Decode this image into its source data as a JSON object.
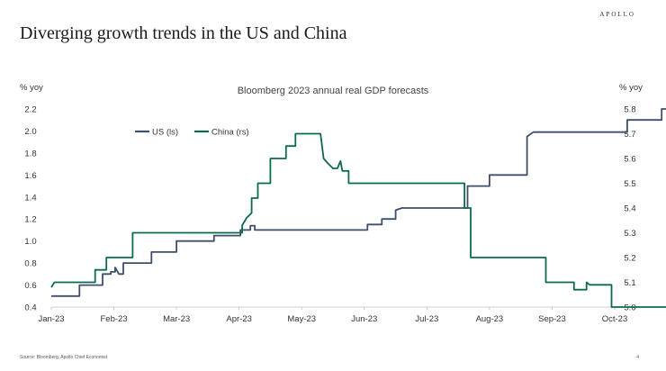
{
  "header": {
    "brand": "APOLLO",
    "title": "Diverging growth trends in the US and China"
  },
  "footer": {
    "source": "Source: Bloomberg, Apollo Chief Economist",
    "page": "4"
  },
  "chart_data": {
    "type": "line",
    "title": "Bloomberg 2023 annual real GDP forecasts",
    "ylabel_left": "% yoy",
    "ylabel_right": "% yoy",
    "x_ticks": [
      "Jan-23",
      "Feb-23",
      "Mar-23",
      "Apr-23",
      "May-23",
      "Jun-23",
      "Jul-23",
      "Aug-23",
      "Sep-23",
      "Oct-23"
    ],
    "ylim_left": [
      0.4,
      2.2
    ],
    "y_ticks_left": [
      "0.4",
      "0.6",
      "0.8",
      "1.0",
      "1.2",
      "1.4",
      "1.6",
      "1.8",
      "2.0",
      "2.2"
    ],
    "ylim_right": [
      5.0,
      5.8
    ],
    "y_ticks_right": [
      "5.0",
      "5.1",
      "5.2",
      "5.3",
      "5.4",
      "5.5",
      "5.6",
      "5.7",
      "5.8"
    ],
    "series": [
      {
        "name": "US (ls)",
        "axis": "left",
        "color": "#3d4f6b",
        "points": [
          [
            0,
            0.5
          ],
          [
            0.45,
            0.5
          ],
          [
            0.45,
            0.6
          ],
          [
            0.82,
            0.6
          ],
          [
            0.82,
            0.7
          ],
          [
            0.95,
            0.7
          ],
          [
            0.95,
            0.72
          ],
          [
            1.02,
            0.72
          ],
          [
            1.02,
            0.76
          ],
          [
            1.08,
            0.7
          ],
          [
            1.15,
            0.7
          ],
          [
            1.15,
            0.8
          ],
          [
            1.6,
            0.8
          ],
          [
            1.6,
            0.9
          ],
          [
            2.0,
            0.9
          ],
          [
            2.0,
            1.0
          ],
          [
            2.6,
            1.0
          ],
          [
            2.6,
            1.05
          ],
          [
            3.02,
            1.05
          ],
          [
            3.02,
            1.1
          ],
          [
            3.18,
            1.1
          ],
          [
            3.18,
            1.14
          ],
          [
            3.25,
            1.14
          ],
          [
            3.25,
            1.1
          ],
          [
            5.05,
            1.1
          ],
          [
            5.05,
            1.15
          ],
          [
            5.28,
            1.15
          ],
          [
            5.28,
            1.2
          ],
          [
            5.5,
            1.2
          ],
          [
            5.5,
            1.28
          ],
          [
            5.6,
            1.3
          ],
          [
            6.65,
            1.3
          ],
          [
            6.65,
            1.5
          ],
          [
            7.0,
            1.5
          ],
          [
            7.0,
            1.6
          ],
          [
            7.6,
            1.6
          ],
          [
            7.6,
            1.95
          ],
          [
            7.7,
            1.99
          ],
          [
            9.2,
            1.99
          ],
          [
            9.2,
            2.1
          ],
          [
            9.75,
            2.1
          ],
          [
            9.75,
            2.2
          ],
          [
            10.0,
            2.2
          ]
        ]
      },
      {
        "name": "China (rs)",
        "axis": "right",
        "color": "#0c6b4e",
        "points": [
          [
            0,
            5.08
          ],
          [
            0.05,
            5.1
          ],
          [
            0.7,
            5.1
          ],
          [
            0.7,
            5.15
          ],
          [
            0.88,
            5.15
          ],
          [
            0.88,
            5.2
          ],
          [
            1.3,
            5.2
          ],
          [
            1.3,
            5.3
          ],
          [
            3.05,
            5.3
          ],
          [
            3.05,
            5.33
          ],
          [
            3.12,
            5.36
          ],
          [
            3.2,
            5.38
          ],
          [
            3.2,
            5.44
          ],
          [
            3.3,
            5.44
          ],
          [
            3.3,
            5.5
          ],
          [
            3.5,
            5.5
          ],
          [
            3.5,
            5.6
          ],
          [
            3.75,
            5.6
          ],
          [
            3.75,
            5.65
          ],
          [
            3.9,
            5.65
          ],
          [
            3.9,
            5.7
          ],
          [
            4.3,
            5.7
          ],
          [
            4.35,
            5.6
          ],
          [
            4.42,
            5.58
          ],
          [
            4.5,
            5.56
          ],
          [
            4.57,
            5.56
          ],
          [
            4.62,
            5.59
          ],
          [
            4.65,
            5.55
          ],
          [
            4.75,
            5.55
          ],
          [
            4.75,
            5.5
          ],
          [
            6.6,
            5.5
          ],
          [
            6.6,
            5.4
          ],
          [
            6.7,
            5.4
          ],
          [
            6.7,
            5.2
          ],
          [
            7.9,
            5.2
          ],
          [
            7.9,
            5.1
          ],
          [
            8.35,
            5.1
          ],
          [
            8.35,
            5.07
          ],
          [
            8.55,
            5.07
          ],
          [
            8.55,
            5.1
          ],
          [
            8.6,
            5.09
          ],
          [
            8.95,
            5.09
          ],
          [
            8.95,
            5.0
          ],
          [
            10.0,
            5.0
          ]
        ]
      }
    ]
  }
}
